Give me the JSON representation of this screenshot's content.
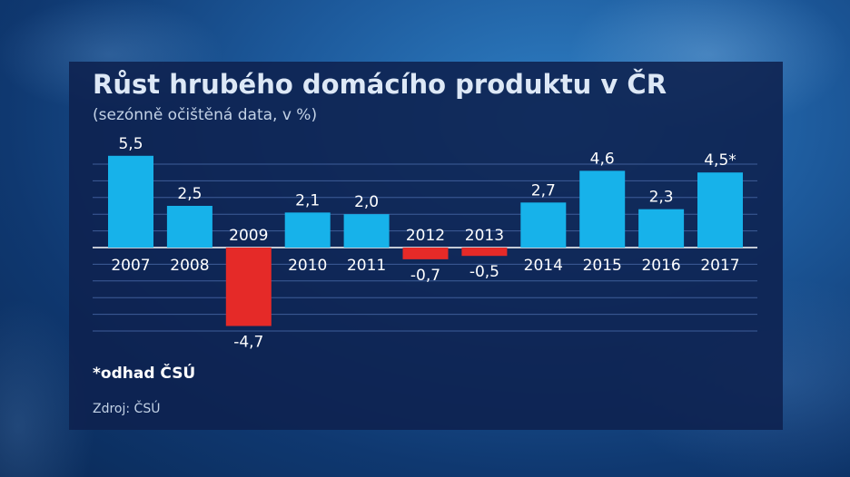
{
  "chart_data": {
    "type": "bar",
    "title": "Růst hrubého domácího produktu v ČR",
    "subtitle": "(sezónně očištěná data, v %)",
    "categories": [
      "2007",
      "2008",
      "2009",
      "2010",
      "2011",
      "2012",
      "2013",
      "2014",
      "2015",
      "2016",
      "2017"
    ],
    "values": [
      5.5,
      2.5,
      -4.7,
      2.1,
      2.0,
      -0.7,
      -0.5,
      2.7,
      4.6,
      2.3,
      4.5
    ],
    "value_labels": [
      "5,5",
      "2,5",
      "-4,7",
      "2,1",
      "2,0",
      "-0,7",
      "-0,5",
      "2,7",
      "4,6",
      "2,3",
      "4,5*"
    ],
    "ylim": [
      -5.0,
      5.5
    ],
    "grid": true,
    "colors": {
      "positive": "#17b2ea",
      "negative": "#e52a28",
      "grid": "#3e5d99",
      "axis": "#ffffff"
    }
  },
  "footnote": "*odhad ČSÚ",
  "source": "Zdroj: ČSÚ"
}
